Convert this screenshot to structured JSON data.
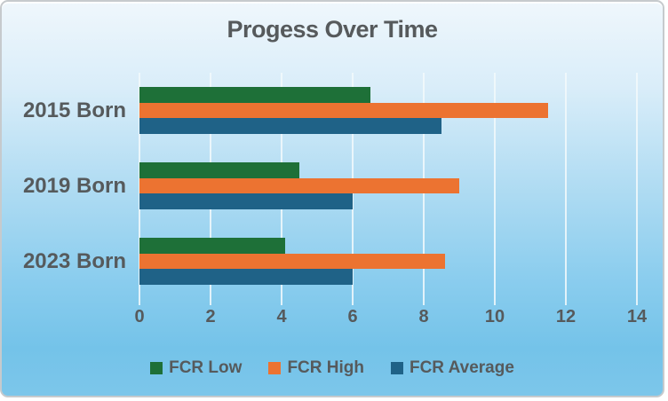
{
  "chart_data": {
    "type": "bar",
    "orientation": "horizontal",
    "title": "Progess Over Time",
    "categories": [
      "2015 Born",
      "2019 Born",
      "2023 Born"
    ],
    "series": [
      {
        "name": "FCR Low",
        "color": "#1e7038",
        "values": [
          6.5,
          4.5,
          4.1
        ]
      },
      {
        "name": "FCR High",
        "color": "#ec7331",
        "values": [
          11.5,
          9,
          8.6
        ]
      },
      {
        "name": "FCR Average",
        "color": "#1f6287",
        "values": [
          8.5,
          6,
          6
        ]
      }
    ],
    "x_axis": {
      "min": 0,
      "max": 14,
      "step": 2,
      "tick_labels": [
        "0",
        "2",
        "4",
        "6",
        "8",
        "10",
        "12",
        "14"
      ]
    },
    "grid": true,
    "legend_position": "bottom"
  },
  "colors": {
    "text": "#565a5c",
    "gridline": "#f2f9fc",
    "background_top": "#eff7fc",
    "background_bottom": "#7cc6ea",
    "frame_border": "#c6cacd"
  }
}
